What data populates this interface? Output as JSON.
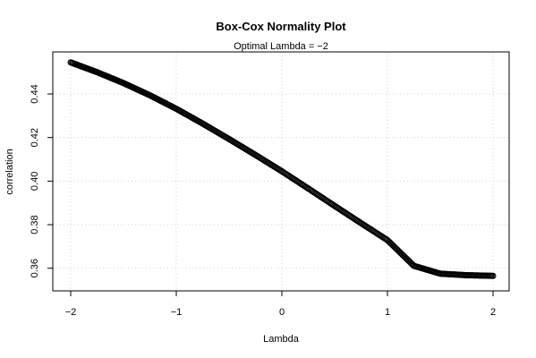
{
  "chart_data": {
    "type": "scatter",
    "title": "Box-Cox Normality Plot",
    "subtitle": "Optimal Lambda = −2",
    "xlabel": "Lambda",
    "ylabel": "correlation",
    "xlim": [
      -2,
      2
    ],
    "ylim": [
      0.3565,
      0.4545
    ],
    "x_ticks": [
      -2,
      -1,
      0,
      1,
      2
    ],
    "x_tick_labels": [
      "−2",
      "−1",
      "0",
      "1",
      "2"
    ],
    "y_ticks": [
      0.36,
      0.38,
      0.4,
      0.42,
      0.44
    ],
    "y_tick_labels": [
      "0.36",
      "0.38",
      "0.40",
      "0.42",
      "0.44"
    ],
    "grid": true,
    "colors": {
      "points": "#000000",
      "grid": "#d3d3d3",
      "frame": "#000000"
    },
    "x": [
      -2.0,
      -1.75,
      -1.5,
      -1.25,
      -1.0,
      -0.75,
      -0.5,
      -0.25,
      0.0,
      0.25,
      0.5,
      0.75,
      1.0,
      1.25,
      1.5,
      1.75,
      2.0
    ],
    "y": [
      0.4545,
      0.45,
      0.445,
      0.4394,
      0.4332,
      0.4264,
      0.4193,
      0.412,
      0.4045,
      0.3966,
      0.3886,
      0.3807,
      0.3729,
      0.3611,
      0.3575,
      0.3568,
      0.3565
    ]
  }
}
